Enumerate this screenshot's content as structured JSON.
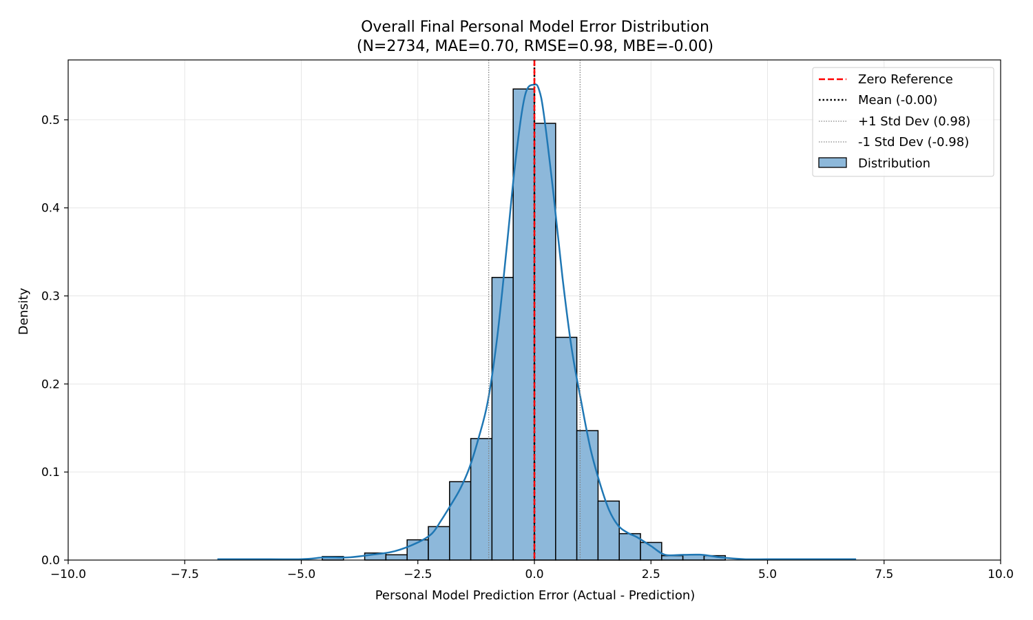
{
  "chart_data": {
    "type": "bar",
    "title": "Overall Final Personal Model Error Distribution",
    "subtitle": "(N=2734, MAE=0.70, RMSE=0.98, MBE=-0.00)",
    "xlabel": "Personal Model Prediction Error (Actual - Prediction)",
    "ylabel": "Density",
    "xlim": [
      -10.0,
      10.0
    ],
    "ylim": [
      0.0,
      0.568
    ],
    "xticks": [
      -10.0,
      -7.5,
      -5.0,
      -2.5,
      0.0,
      2.5,
      5.0,
      7.5,
      10.0
    ],
    "xtick_labels": [
      "−10.0",
      "−7.5",
      "−5.0",
      "−2.5",
      "0.0",
      "2.5",
      "5.0",
      "7.5",
      "10.0"
    ],
    "yticks": [
      0.0,
      0.1,
      0.2,
      0.3,
      0.4,
      0.5
    ],
    "ytick_labels": [
      "0.0",
      "0.1",
      "0.2",
      "0.3",
      "0.4",
      "0.5"
    ],
    "grid": true,
    "legend_position": "top-right",
    "bin_width": 0.455,
    "bins": [
      {
        "left": -4.55,
        "right": -4.095,
        "density": 0.004
      },
      {
        "left": -3.64,
        "right": -3.185,
        "density": 0.008
      },
      {
        "left": -3.185,
        "right": -2.73,
        "density": 0.006
      },
      {
        "left": -2.73,
        "right": -2.275,
        "density": 0.023
      },
      {
        "left": -2.275,
        "right": -1.82,
        "density": 0.038
      },
      {
        "left": -1.82,
        "right": -1.365,
        "density": 0.089
      },
      {
        "left": -1.365,
        "right": -0.91,
        "density": 0.138
      },
      {
        "left": -0.91,
        "right": -0.455,
        "density": 0.321
      },
      {
        "left": -0.455,
        "right": 0.0,
        "density": 0.535
      },
      {
        "left": 0.0,
        "right": 0.455,
        "density": 0.496
      },
      {
        "left": 0.455,
        "right": 0.91,
        "density": 0.253
      },
      {
        "left": 0.91,
        "right": 1.365,
        "density": 0.147
      },
      {
        "left": 1.365,
        "right": 1.82,
        "density": 0.067
      },
      {
        "left": 1.82,
        "right": 2.275,
        "density": 0.03
      },
      {
        "left": 2.275,
        "right": 2.73,
        "density": 0.02
      },
      {
        "left": 2.73,
        "right": 3.185,
        "density": 0.005
      },
      {
        "left": 3.185,
        "right": 3.64,
        "density": 0.006
      },
      {
        "left": 3.64,
        "right": 4.095,
        "density": 0.005
      }
    ],
    "kde": {
      "x": [
        -6.8,
        -6.0,
        -5.0,
        -4.5,
        -4.0,
        -3.5,
        -3.0,
        -2.5,
        -2.2,
        -2.0,
        -1.8,
        -1.6,
        -1.4,
        -1.2,
        -1.0,
        -0.8,
        -0.6,
        -0.4,
        -0.2,
        0.0,
        0.1,
        0.2,
        0.4,
        0.6,
        0.8,
        1.0,
        1.2,
        1.4,
        1.6,
        1.8,
        2.0,
        2.2,
        2.5,
        2.8,
        3.2,
        3.6,
        4.0,
        4.5,
        5.0,
        6.0,
        6.9
      ],
      "y": [
        0.001,
        0.001,
        0.001,
        0.003,
        0.003,
        0.006,
        0.01,
        0.02,
        0.03,
        0.045,
        0.062,
        0.08,
        0.104,
        0.138,
        0.18,
        0.252,
        0.352,
        0.456,
        0.528,
        0.54,
        0.534,
        0.507,
        0.42,
        0.322,
        0.24,
        0.181,
        0.127,
        0.088,
        0.057,
        0.039,
        0.031,
        0.026,
        0.016,
        0.006,
        0.006,
        0.006,
        0.003,
        0.001,
        0.001,
        0.001,
        0.001
      ]
    },
    "reference_lines": [
      {
        "name": "Zero Reference",
        "x": 0.0,
        "color": "#ff0000",
        "style": "dashed"
      },
      {
        "name": "Mean (-0.00)",
        "x": -0.0,
        "color": "#000000",
        "style": "dotted"
      },
      {
        "name": "+1 Std Dev (0.98)",
        "x": 0.98,
        "color": "#808080",
        "style": "dotted"
      },
      {
        "name": "-1 Std Dev (-0.98)",
        "x": -0.98,
        "color": "#808080",
        "style": "dotted"
      }
    ],
    "legend": [
      "Zero Reference",
      "Mean (-0.00)",
      "+1 Std Dev (0.98)",
      "-1 Std Dev (-0.98)",
      "Distribution"
    ],
    "colors": {
      "bar_fill": "#8db8da",
      "bar_edge": "#000000",
      "kde": "#1f77b4",
      "grid": "#e6e6e6"
    }
  }
}
